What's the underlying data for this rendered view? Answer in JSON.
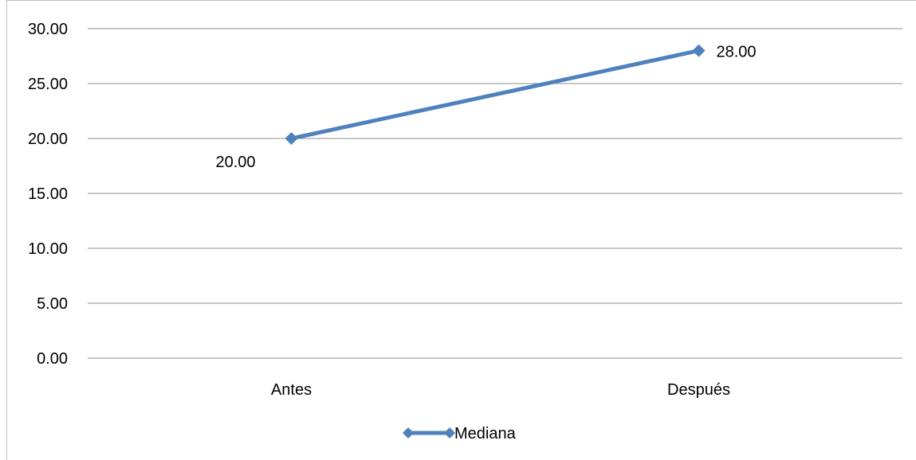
{
  "chart_data": {
    "type": "line",
    "categories": [
      "Antes",
      "Después"
    ],
    "series": [
      {
        "name": "Mediana",
        "values": [
          20.0,
          28.0
        ],
        "color": "#4f81bd",
        "marker": "diamond"
      }
    ],
    "data_labels": [
      "20.00",
      "28.00"
    ],
    "y_ticks": [
      "0.00",
      "5.00",
      "10.00",
      "15.00",
      "20.00",
      "25.00",
      "30.00"
    ],
    "ylim": [
      0,
      30
    ],
    "y_step": 5,
    "grid": true,
    "legend": "bottom",
    "colors": {
      "gridline": "#8c8c8c",
      "axis": "#8c8c8c"
    }
  }
}
